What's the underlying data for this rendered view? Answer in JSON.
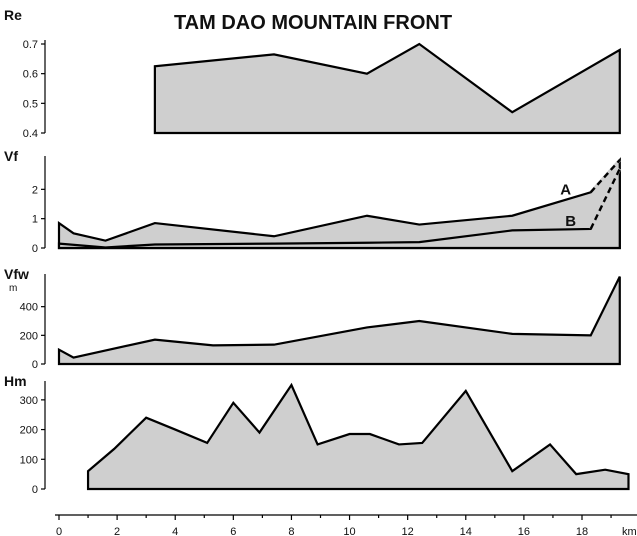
{
  "chart_data": {
    "type": "area",
    "title": "TAM DAO MOUNTAIN FRONT",
    "x_axis": {
      "ticks": [
        0,
        2,
        4,
        6,
        8,
        10,
        12,
        14,
        16,
        18
      ],
      "unit": "km",
      "range": [
        0,
        19.5
      ]
    },
    "panels": [
      {
        "id": "Re",
        "ylabel": "Re",
        "yunit": "",
        "yticks": [
          "0.4",
          "0.5",
          "0.6",
          "0.7"
        ],
        "ylim": [
          0.4,
          0.7
        ],
        "series": [
          {
            "x": [
              3.3,
              7.4,
              10.6,
              12.4,
              15.6,
              19.3
            ],
            "y": [
              0.625,
              0.665,
              0.6,
              0.7,
              0.47,
              0.68
            ]
          }
        ]
      },
      {
        "id": "Vf",
        "ylabel": "Vf",
        "yunit": "",
        "yticks": [
          "0",
          "1",
          "2"
        ],
        "ylim": [
          0,
          3
        ],
        "series": [
          {
            "name": "A",
            "x": [
              0,
              0.5,
              1.6,
              3.3,
              7.4,
              10.6,
              12.4,
              15.6,
              18.3
            ],
            "y": [
              0.85,
              0.5,
              0.25,
              0.85,
              0.4,
              1.1,
              0.8,
              1.1,
              1.9
            ],
            "dashed_to": {
              "x": 19.3,
              "y": 3.0
            }
          },
          {
            "name": "B",
            "x": [
              0,
              1.6,
              3.3,
              7.4,
              10.6,
              12.4,
              15.6,
              18.3
            ],
            "y": [
              0.15,
              0.02,
              0.12,
              0.15,
              0.18,
              0.2,
              0.6,
              0.65
            ],
            "dashed_to": {
              "x": 19.3,
              "y": 2.7
            }
          }
        ]
      },
      {
        "id": "Vfw",
        "ylabel": "Vfw",
        "yunit": "m",
        "yticks": [
          "0",
          "200",
          "400"
        ],
        "ylim": [
          0,
          600
        ],
        "series": [
          {
            "x": [
              0,
              0.5,
              3.3,
              5.3,
              7.4,
              10.6,
              12.4,
              15.6,
              18.3,
              19.3
            ],
            "y": [
              100,
              45,
              170,
              130,
              135,
              255,
              300,
              210,
              200,
              610
            ]
          }
        ]
      },
      {
        "id": "Hm",
        "ylabel": "Hm",
        "yunit": "",
        "yticks": [
          "0",
          "100",
          "200",
          "300"
        ],
        "ylim": [
          0,
          350
        ],
        "series": [
          {
            "x": [
              1.0,
              1.9,
              3.0,
              4.0,
              5.1,
              6.0,
              6.9,
              8.0,
              8.9,
              10.0,
              10.7,
              11.7,
              12.5,
              14.0,
              15.6,
              16.9,
              17.8,
              18.8,
              19.6
            ],
            "y": [
              60,
              135,
              240,
              200,
              155,
              290,
              190,
              350,
              150,
              185,
              185,
              150,
              155,
              330,
              60,
              150,
              50,
              65,
              50
            ]
          }
        ]
      }
    ]
  }
}
